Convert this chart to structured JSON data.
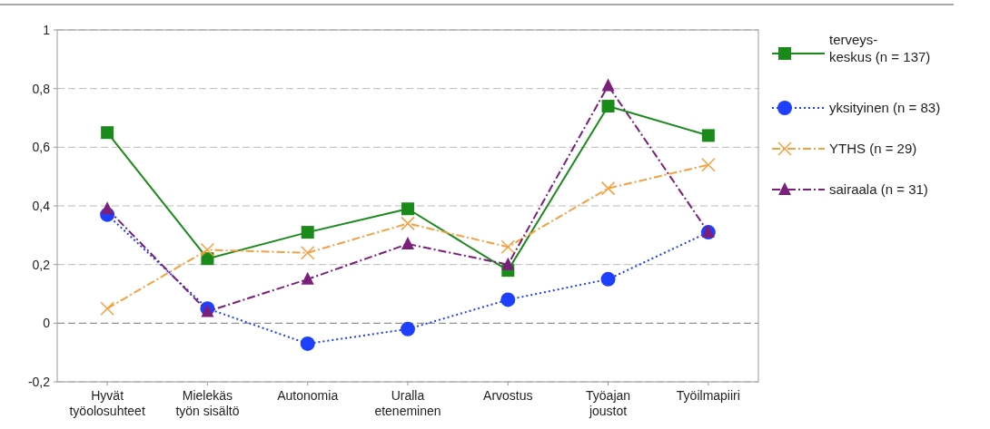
{
  "chart_data": {
    "type": "line",
    "categories": [
      "Hyvät\ntyöolosuhteet",
      "Mielekäs\ntyön sisältö",
      "Autonomia",
      "Uralla\neteneminen",
      "Arvostus",
      "Työajan\njoustot",
      "Työilmapiiri"
    ],
    "ylim": [
      -0.2,
      1
    ],
    "yticks": [
      {
        "value": -0.2,
        "label": "-0,2"
      },
      0,
      {
        "value": 0.2,
        "label": "0,2"
      },
      {
        "value": 0.4,
        "label": "0,4"
      },
      {
        "value": 0.6,
        "label": "0,6"
      },
      {
        "value": 0.8,
        "label": "0,8"
      },
      1
    ],
    "grid": "y",
    "legend": "right",
    "ref_lines": [
      {
        "axis": "y",
        "value": 0,
        "color": "#777777",
        "line_style": "dashed"
      }
    ],
    "series": [
      {
        "name": "terveys-\nkeskus (n = 137)",
        "color": "#1a8a1a",
        "marker": "square",
        "line_style": "solid",
        "values": [
          0.65,
          0.22,
          0.31,
          0.39,
          0.18,
          0.74,
          0.64
        ]
      },
      {
        "name": "yksityinen (n = 83)",
        "color": "#1f3fff",
        "marker": "circle",
        "line_style": "dotted",
        "values": [
          0.37,
          0.05,
          -0.07,
          -0.02,
          0.08,
          0.15,
          0.31
        ]
      },
      {
        "name": "YTHS (n = 29)",
        "color": "#f5a040",
        "marker": "cross",
        "line_style": "dashed",
        "values": [
          0.05,
          0.25,
          0.24,
          0.34,
          0.26,
          0.46,
          0.54
        ]
      },
      {
        "name": "sairaala (n = 31)",
        "color": "#7b1f7b",
        "marker": "triangle",
        "line_style": "dashed",
        "values": [
          0.39,
          0.04,
          0.15,
          0.27,
          0.2,
          0.81,
          0.31
        ]
      }
    ]
  }
}
